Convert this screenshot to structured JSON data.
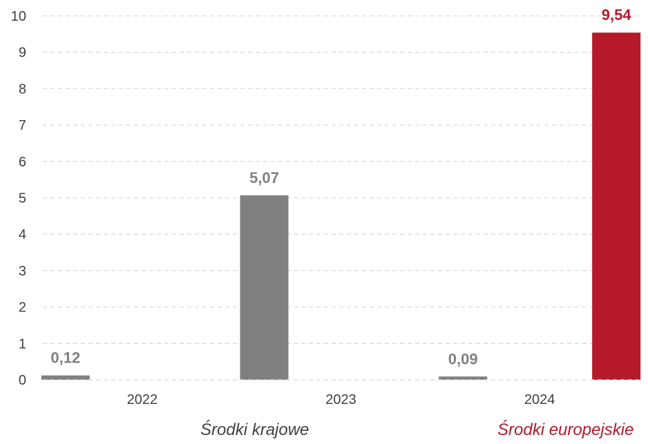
{
  "chart_data": {
    "type": "bar",
    "title": "",
    "xlabel": "",
    "ylabel": "",
    "ylim": [
      0,
      10
    ],
    "yticks": [
      "0",
      "1",
      "2",
      "3",
      "4",
      "5",
      "6",
      "7",
      "8",
      "9",
      "10"
    ],
    "grid": true,
    "categories": [
      "2022",
      "2023",
      "2024"
    ],
    "series": [
      {
        "name": "Środki krajowe",
        "color": "#808080",
        "values": [
          0.12,
          5.07,
          0.09
        ],
        "labels": [
          "0,12",
          "5,07",
          "0,09"
        ]
      },
      {
        "name": "Środki europejskie",
        "color": "#B5192A",
        "values": [
          null,
          null,
          9.54
        ],
        "labels": [
          "",
          "",
          "9,54"
        ]
      }
    ],
    "legend_position": "bottom"
  }
}
